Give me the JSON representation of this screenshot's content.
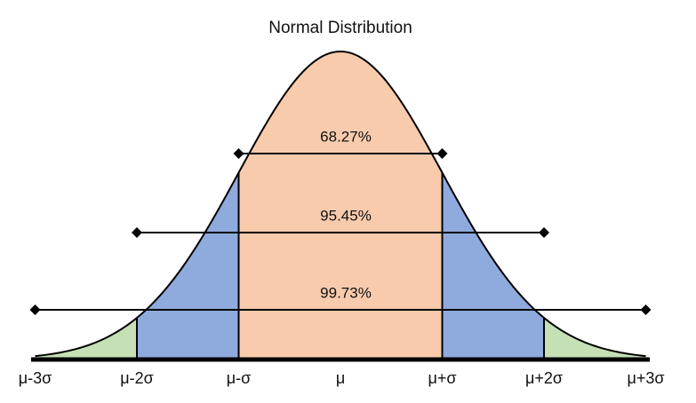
{
  "title": "Normal Distribution",
  "intervals": [
    "68.27%",
    "95.45%",
    "99.73%"
  ],
  "axis_labels": [
    "μ-3σ",
    "μ-2σ",
    "μ-σ",
    "μ",
    "μ+σ",
    "μ+2σ",
    "μ+3σ"
  ]
}
